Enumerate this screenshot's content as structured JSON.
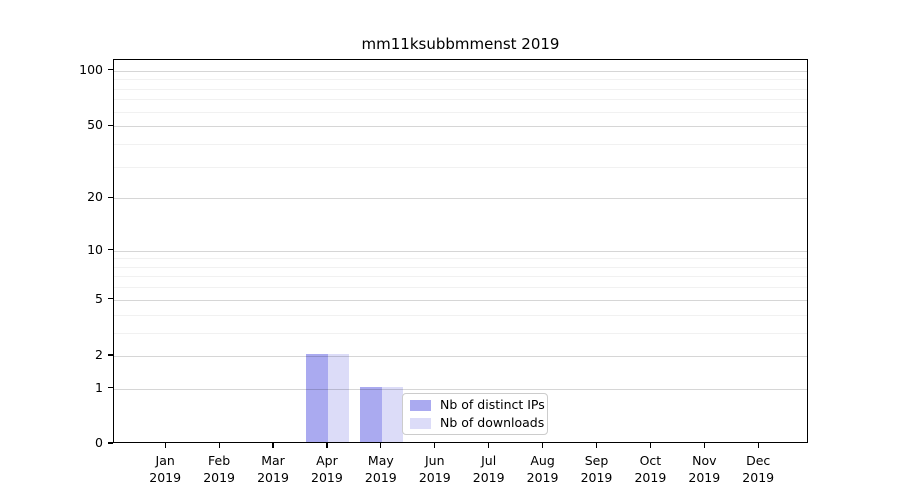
{
  "title": "mm11ksubbmmenst 2019",
  "y_axis": {
    "tick_labels": [
      "0",
      "1",
      "2",
      "5",
      "10",
      "20",
      "50",
      "100"
    ],
    "tick_values": [
      0,
      1,
      2,
      5,
      10,
      20,
      50,
      100
    ],
    "minor_values": [
      3,
      4,
      6,
      7,
      8,
      9,
      30,
      40,
      60,
      70,
      80,
      90
    ]
  },
  "x_axis": {
    "months": [
      "Jan",
      "Feb",
      "Mar",
      "Apr",
      "May",
      "Jun",
      "Jul",
      "Aug",
      "Sep",
      "Oct",
      "Nov",
      "Dec"
    ],
    "year": "2019"
  },
  "legend": {
    "items": [
      "Nb of distinct IPs",
      "Nb of downloads"
    ]
  },
  "chart_data": {
    "type": "bar",
    "title": "mm11ksubbmmenst 2019",
    "categories": [
      "Jan 2019",
      "Feb 2019",
      "Mar 2019",
      "Apr 2019",
      "May 2019",
      "Jun 2019",
      "Jul 2019",
      "Aug 2019",
      "Sep 2019",
      "Oct 2019",
      "Nov 2019",
      "Dec 2019"
    ],
    "series": [
      {
        "name": "Nb of distinct IPs",
        "color": "#aaaaf0",
        "values": [
          0,
          0,
          0,
          2,
          1,
          0,
          0,
          0,
          0,
          0,
          0,
          0
        ]
      },
      {
        "name": "Nb of downloads",
        "color": "#dcdcf8",
        "values": [
          0,
          0,
          0,
          2,
          1,
          0,
          0,
          0,
          0,
          0,
          0,
          0
        ]
      }
    ],
    "yscale": "log1p",
    "y_ticks": [
      0,
      1,
      2,
      5,
      10,
      20,
      50,
      100
    ],
    "ylim": [
      0,
      115
    ],
    "grid": "horizontal major and minor lines",
    "legend_position": "inside lower-center",
    "bar_layout": "paired bars per month, dark left of tick, light right of tick"
  }
}
